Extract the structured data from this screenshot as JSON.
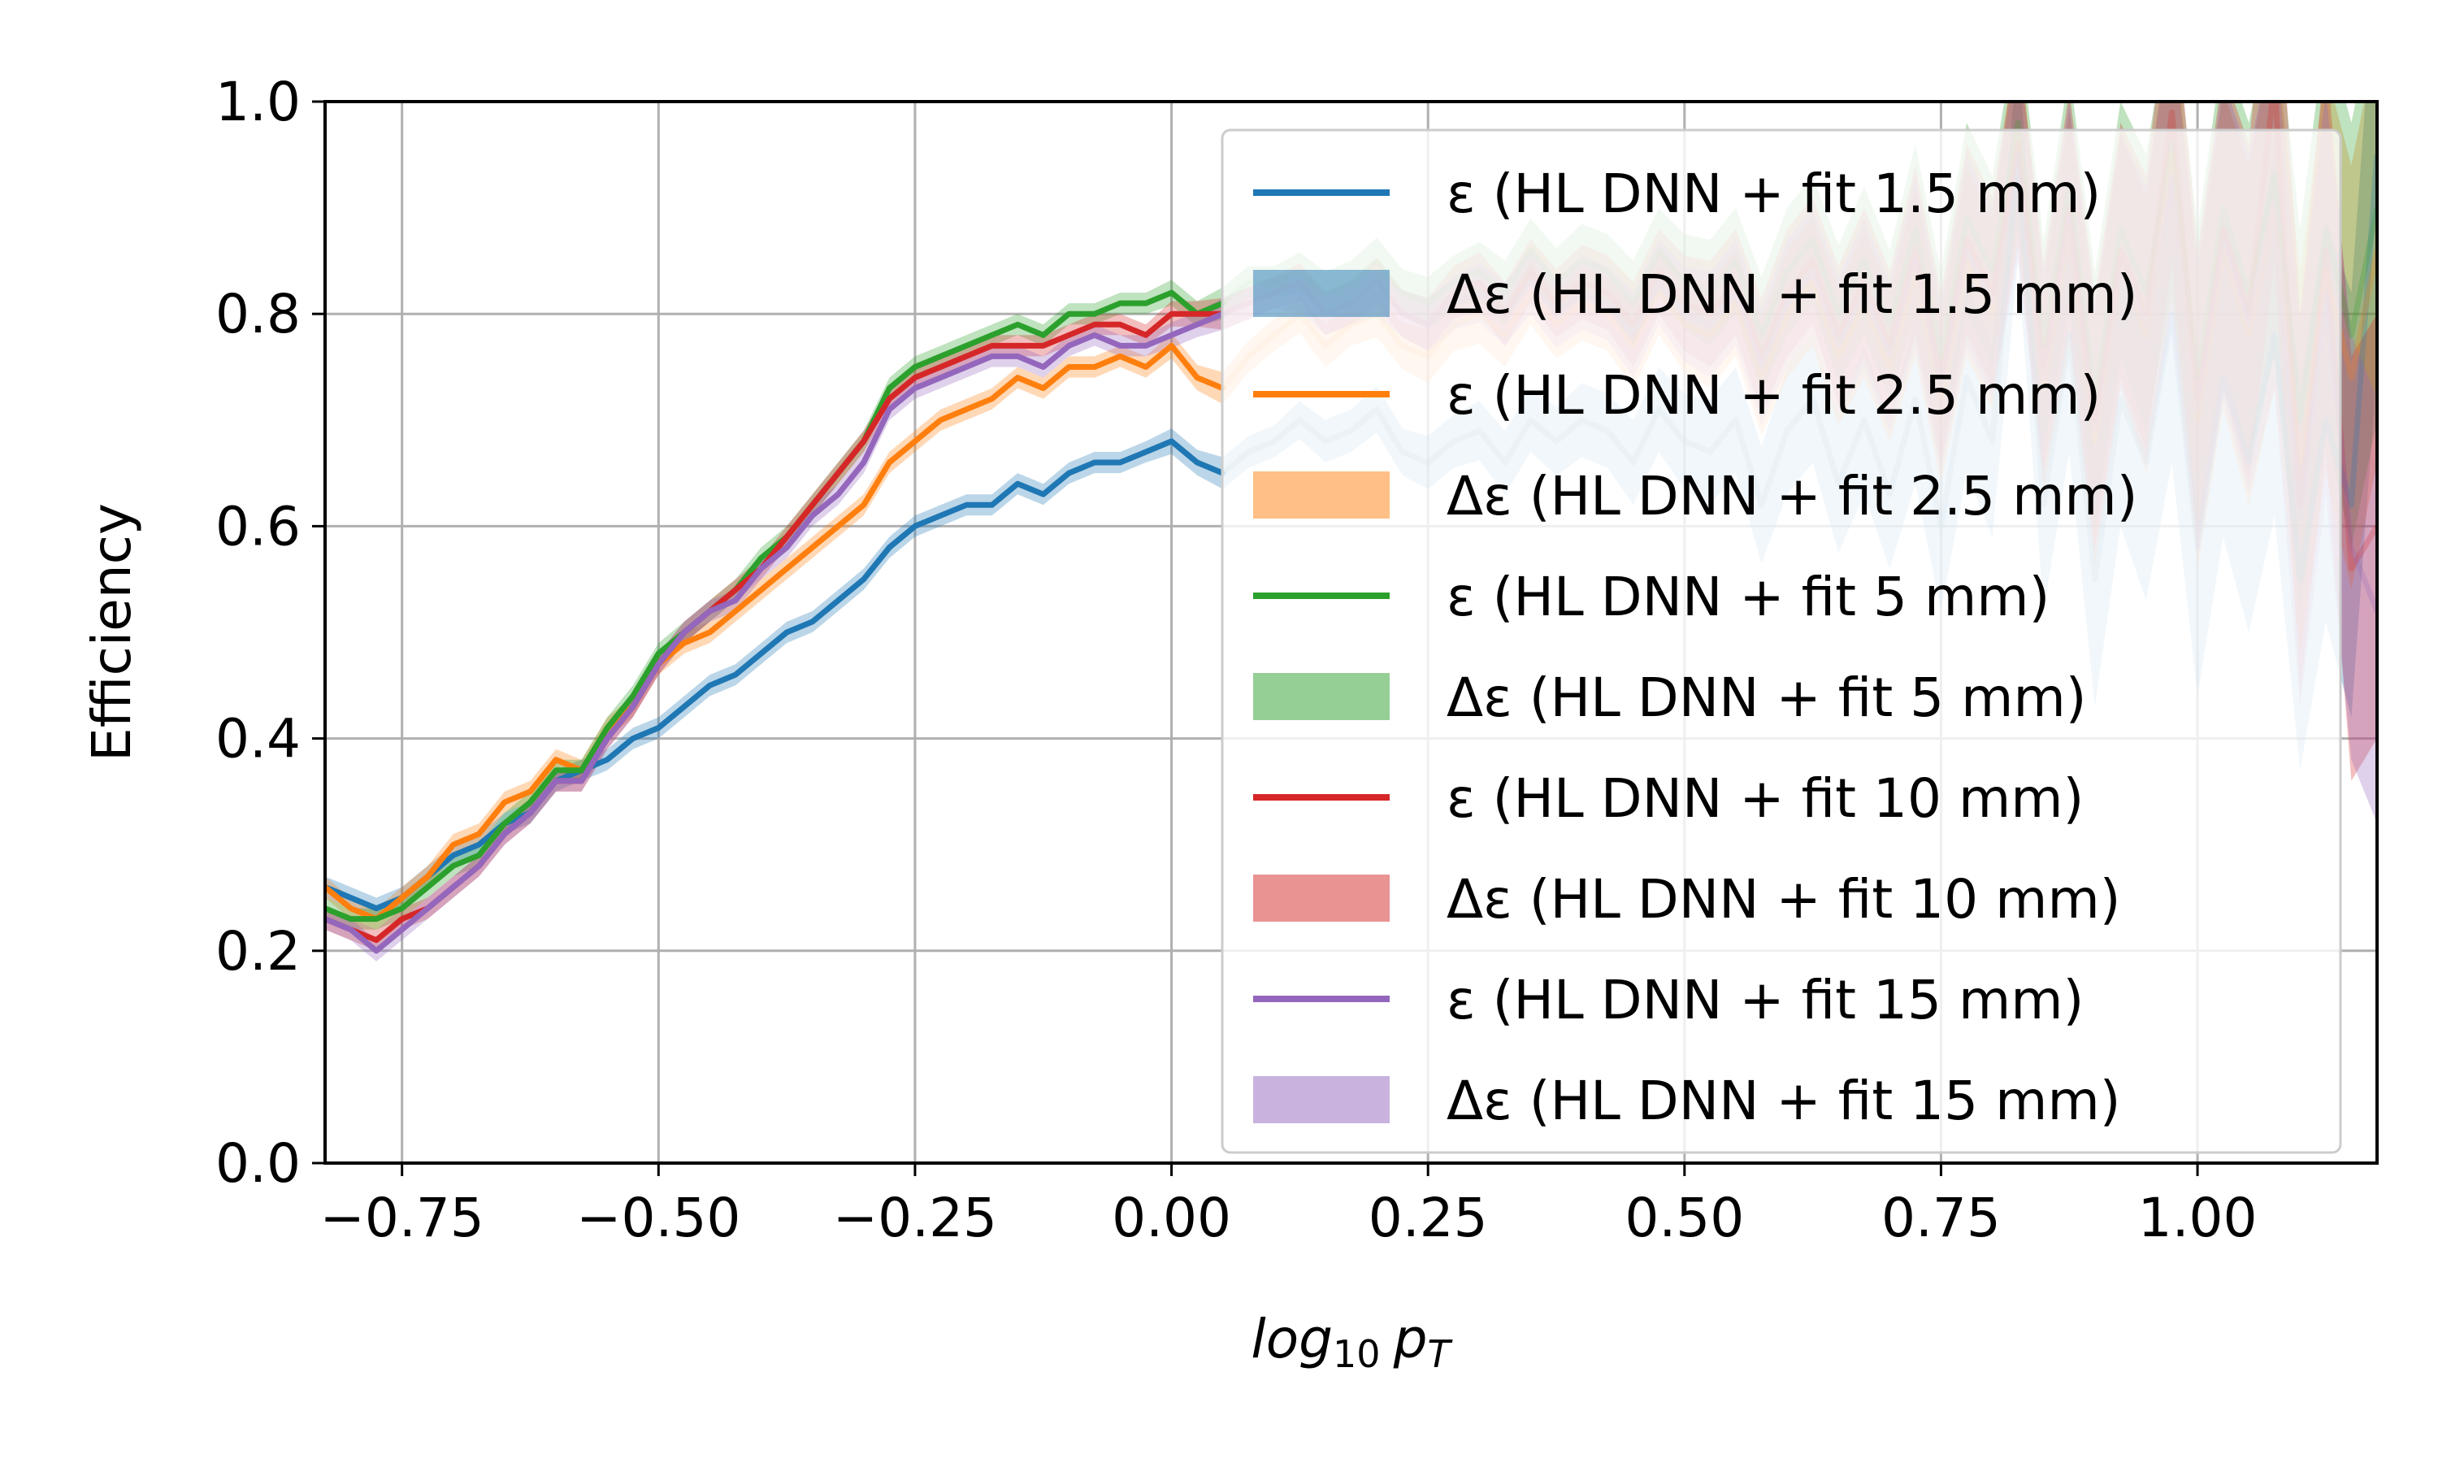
{
  "chart_data": {
    "type": "line",
    "xlabel_base": "log",
    "xlabel_sub": "10",
    "xlabel_p": "p",
    "xlabel_psub": "T",
    "ylabel": "Efficiency",
    "xlim": [
      -0.825,
      1.175
    ],
    "ylim": [
      0.0,
      1.0
    ],
    "xticks": [
      -0.75,
      -0.5,
      -0.25,
      0.0,
      0.25,
      0.5,
      0.75,
      1.0
    ],
    "xtick_labels": [
      "−0.75",
      "−0.50",
      "−0.25",
      "0.00",
      "0.25",
      "0.50",
      "0.75",
      "1.00"
    ],
    "yticks": [
      0.0,
      0.2,
      0.4,
      0.6,
      0.8,
      1.0
    ],
    "ytick_labels": [
      "0.0",
      "0.2",
      "0.4",
      "0.6",
      "0.8",
      "1.0"
    ],
    "grid": true,
    "legend_position": "top-right",
    "legend": [
      {
        "label": "ε (HL DNN + fit 1.5 mm)",
        "kind": "line",
        "color": "#1f77b4"
      },
      {
        "label": "Δε (HL DNN + fit 1.5 mm)",
        "kind": "band",
        "color": "#1f77b4"
      },
      {
        "label": "ε (HL DNN + fit 2.5 mm)",
        "kind": "line",
        "color": "#ff7f0e"
      },
      {
        "label": "Δε (HL DNN + fit 2.5 mm)",
        "kind": "band",
        "color": "#ff7f0e"
      },
      {
        "label": "ε (HL DNN + fit 5 mm)",
        "kind": "line",
        "color": "#2ca02c"
      },
      {
        "label": "Δε (HL DNN + fit 5 mm)",
        "kind": "band",
        "color": "#2ca02c"
      },
      {
        "label": "ε (HL DNN + fit 10 mm)",
        "kind": "line",
        "color": "#d62728"
      },
      {
        "label": "Δε (HL DNN + fit 10 mm)",
        "kind": "band",
        "color": "#d62728"
      },
      {
        "label": "ε (HL DNN + fit 15 mm)",
        "kind": "line",
        "color": "#9467bd"
      },
      {
        "label": "Δε (HL DNN + fit 15 mm)",
        "kind": "band",
        "color": "#9467bd"
      }
    ],
    "x": [
      -0.825,
      -0.8,
      -0.775,
      -0.75,
      -0.725,
      -0.7,
      -0.675,
      -0.65,
      -0.625,
      -0.6,
      -0.575,
      -0.55,
      -0.525,
      -0.5,
      -0.475,
      -0.45,
      -0.425,
      -0.4,
      -0.375,
      -0.35,
      -0.325,
      -0.3,
      -0.275,
      -0.25,
      -0.225,
      -0.2,
      -0.175,
      -0.15,
      -0.125,
      -0.1,
      -0.075,
      -0.05,
      -0.025,
      0.0,
      0.025,
      0.05,
      0.075,
      0.1,
      0.125,
      0.15,
      0.175,
      0.2,
      0.225,
      0.25,
      0.275,
      0.3,
      0.325,
      0.35,
      0.375,
      0.4,
      0.425,
      0.45,
      0.475,
      0.5,
      0.525,
      0.55,
      0.575,
      0.6,
      0.625,
      0.65,
      0.675,
      0.7,
      0.725,
      0.75,
      0.775,
      0.8,
      0.825,
      0.85,
      0.875,
      0.9,
      0.925,
      0.95,
      0.975,
      1.0,
      1.025,
      1.05,
      1.075,
      1.1,
      1.125,
      1.15,
      1.175
    ],
    "series": [
      {
        "name": "ε (HL DNN + fit 1.5 mm)",
        "color": "#1f77b4",
        "y": [
          0.26,
          0.25,
          0.24,
          0.25,
          0.27,
          0.29,
          0.3,
          0.32,
          0.33,
          0.36,
          0.37,
          0.38,
          0.4,
          0.41,
          0.43,
          0.45,
          0.46,
          0.48,
          0.5,
          0.51,
          0.53,
          0.55,
          0.58,
          0.6,
          0.61,
          0.62,
          0.62,
          0.64,
          0.63,
          0.65,
          0.66,
          0.66,
          0.67,
          0.68,
          0.66,
          0.65,
          0.67,
          0.68,
          0.7,
          0.68,
          0.69,
          0.71,
          0.67,
          0.66,
          0.68,
          0.69,
          0.66,
          0.7,
          0.68,
          0.7,
          0.69,
          0.66,
          0.71,
          0.68,
          0.67,
          0.7,
          0.62,
          0.69,
          0.72,
          0.64,
          0.7,
          0.63,
          0.72,
          0.6,
          0.74,
          0.68,
          0.95,
          0.62,
          0.78,
          0.55,
          0.72,
          0.66,
          0.8,
          0.58,
          0.74,
          0.66,
          0.78,
          0.55,
          0.7,
          0.62,
          0.95
        ],
        "err": [
          0.01,
          0.01,
          0.01,
          0.01,
          0.01,
          0.01,
          0.01,
          0.01,
          0.01,
          0.01,
          0.01,
          0.01,
          0.01,
          0.01,
          0.01,
          0.01,
          0.01,
          0.01,
          0.01,
          0.01,
          0.01,
          0.01,
          0.01,
          0.01,
          0.01,
          0.01,
          0.01,
          0.01,
          0.01,
          0.01,
          0.01,
          0.01,
          0.01,
          0.012,
          0.012,
          0.015,
          0.015,
          0.015,
          0.018,
          0.02,
          0.02,
          0.022,
          0.022,
          0.025,
          0.025,
          0.028,
          0.03,
          0.03,
          0.032,
          0.035,
          0.035,
          0.04,
          0.04,
          0.045,
          0.05,
          0.05,
          0.055,
          0.06,
          0.06,
          0.065,
          0.07,
          0.07,
          0.08,
          0.08,
          0.09,
          0.09,
          0.1,
          0.1,
          0.11,
          0.12,
          0.12,
          0.13,
          0.14,
          0.14,
          0.15,
          0.16,
          0.17,
          0.18,
          0.19,
          0.2,
          0.2
        ]
      },
      {
        "name": "ε (HL DNN + fit 2.5 mm)",
        "color": "#ff7f0e",
        "y": [
          0.26,
          0.24,
          0.23,
          0.25,
          0.27,
          0.3,
          0.31,
          0.34,
          0.35,
          0.38,
          0.37,
          0.41,
          0.43,
          0.47,
          0.49,
          0.5,
          0.52,
          0.54,
          0.56,
          0.58,
          0.6,
          0.62,
          0.66,
          0.68,
          0.7,
          0.71,
          0.72,
          0.74,
          0.73,
          0.75,
          0.75,
          0.76,
          0.75,
          0.77,
          0.74,
          0.73,
          0.76,
          0.78,
          0.8,
          0.77,
          0.79,
          0.8,
          0.77,
          0.76,
          0.79,
          0.8,
          0.78,
          0.82,
          0.79,
          0.81,
          0.8,
          0.77,
          0.82,
          0.79,
          0.78,
          0.81,
          0.74,
          0.8,
          0.83,
          0.76,
          0.81,
          0.75,
          0.84,
          0.72,
          0.85,
          0.8,
          0.97,
          0.73,
          0.88,
          0.68,
          0.85,
          0.78,
          0.95,
          0.7,
          0.86,
          0.78,
          0.9,
          0.66,
          0.84,
          0.74,
          0.86
        ],
        "err": [
          0.01,
          0.01,
          0.01,
          0.01,
          0.01,
          0.01,
          0.01,
          0.01,
          0.01,
          0.01,
          0.01,
          0.01,
          0.01,
          0.01,
          0.01,
          0.01,
          0.01,
          0.01,
          0.01,
          0.01,
          0.01,
          0.01,
          0.01,
          0.01,
          0.01,
          0.01,
          0.01,
          0.01,
          0.01,
          0.01,
          0.01,
          0.01,
          0.01,
          0.012,
          0.012,
          0.015,
          0.015,
          0.015,
          0.018,
          0.02,
          0.02,
          0.022,
          0.022,
          0.025,
          0.025,
          0.028,
          0.03,
          0.03,
          0.032,
          0.035,
          0.035,
          0.04,
          0.04,
          0.045,
          0.05,
          0.05,
          0.055,
          0.06,
          0.06,
          0.065,
          0.07,
          0.07,
          0.08,
          0.08,
          0.09,
          0.09,
          0.1,
          0.1,
          0.11,
          0.12,
          0.12,
          0.13,
          0.14,
          0.14,
          0.15,
          0.16,
          0.17,
          0.18,
          0.19,
          0.2,
          0.2
        ]
      },
      {
        "name": "ε (HL DNN + fit 5 mm)",
        "color": "#2ca02c",
        "y": [
          0.24,
          0.23,
          0.23,
          0.24,
          0.26,
          0.28,
          0.29,
          0.32,
          0.34,
          0.37,
          0.37,
          0.41,
          0.44,
          0.48,
          0.5,
          0.52,
          0.54,
          0.57,
          0.59,
          0.62,
          0.65,
          0.68,
          0.73,
          0.75,
          0.76,
          0.77,
          0.78,
          0.79,
          0.78,
          0.8,
          0.8,
          0.81,
          0.81,
          0.82,
          0.8,
          0.81,
          0.83,
          0.83,
          0.84,
          0.82,
          0.83,
          0.85,
          0.82,
          0.81,
          0.83,
          0.84,
          0.82,
          0.86,
          0.83,
          0.85,
          0.84,
          0.81,
          0.86,
          0.83,
          0.82,
          0.85,
          0.78,
          0.84,
          0.87,
          0.8,
          0.85,
          0.79,
          0.88,
          0.76,
          0.89,
          0.84,
          0.98,
          0.77,
          0.92,
          0.72,
          0.88,
          0.82,
          0.96,
          0.74,
          0.9,
          0.82,
          0.93,
          0.7,
          0.88,
          0.78,
          0.9
        ],
        "err": [
          0.01,
          0.01,
          0.01,
          0.01,
          0.01,
          0.01,
          0.01,
          0.01,
          0.01,
          0.01,
          0.01,
          0.01,
          0.01,
          0.01,
          0.01,
          0.01,
          0.01,
          0.01,
          0.01,
          0.01,
          0.01,
          0.01,
          0.01,
          0.01,
          0.01,
          0.01,
          0.01,
          0.01,
          0.01,
          0.01,
          0.01,
          0.01,
          0.01,
          0.012,
          0.012,
          0.015,
          0.015,
          0.015,
          0.018,
          0.02,
          0.02,
          0.022,
          0.022,
          0.025,
          0.025,
          0.028,
          0.03,
          0.03,
          0.032,
          0.035,
          0.035,
          0.04,
          0.04,
          0.045,
          0.05,
          0.05,
          0.055,
          0.06,
          0.06,
          0.065,
          0.07,
          0.07,
          0.08,
          0.08,
          0.09,
          0.09,
          0.1,
          0.1,
          0.11,
          0.12,
          0.12,
          0.13,
          0.14,
          0.14,
          0.15,
          0.16,
          0.17,
          0.18,
          0.19,
          0.2,
          0.2
        ]
      },
      {
        "name": "ε (HL DNN + fit 10 mm)",
        "color": "#d62728",
        "y": [
          0.23,
          0.22,
          0.21,
          0.23,
          0.24,
          0.26,
          0.28,
          0.31,
          0.33,
          0.36,
          0.36,
          0.4,
          0.43,
          0.47,
          0.5,
          0.52,
          0.54,
          0.56,
          0.59,
          0.62,
          0.65,
          0.68,
          0.72,
          0.74,
          0.75,
          0.76,
          0.77,
          0.77,
          0.77,
          0.78,
          0.79,
          0.79,
          0.78,
          0.8,
          0.8,
          0.8,
          0.81,
          0.82,
          0.83,
          0.8,
          0.81,
          0.83,
          0.8,
          0.79,
          0.82,
          0.83,
          0.8,
          0.84,
          0.81,
          0.83,
          0.82,
          0.79,
          0.84,
          0.81,
          0.8,
          0.83,
          0.76,
          0.82,
          0.85,
          0.78,
          0.83,
          0.77,
          0.86,
          0.74,
          0.87,
          0.82,
          0.96,
          0.75,
          0.9,
          0.7,
          0.86,
          0.8,
          0.99,
          0.72,
          0.88,
          0.8,
          1.02,
          0.62,
          0.86,
          0.56,
          0.6
        ],
        "err": [
          0.01,
          0.01,
          0.01,
          0.01,
          0.01,
          0.01,
          0.01,
          0.01,
          0.01,
          0.01,
          0.01,
          0.01,
          0.01,
          0.01,
          0.01,
          0.01,
          0.01,
          0.01,
          0.01,
          0.01,
          0.01,
          0.01,
          0.01,
          0.01,
          0.01,
          0.01,
          0.01,
          0.01,
          0.01,
          0.01,
          0.01,
          0.01,
          0.01,
          0.012,
          0.012,
          0.015,
          0.015,
          0.015,
          0.018,
          0.02,
          0.02,
          0.022,
          0.022,
          0.025,
          0.025,
          0.028,
          0.03,
          0.03,
          0.032,
          0.035,
          0.035,
          0.04,
          0.04,
          0.045,
          0.05,
          0.05,
          0.055,
          0.06,
          0.06,
          0.065,
          0.07,
          0.07,
          0.08,
          0.08,
          0.09,
          0.09,
          0.1,
          0.1,
          0.11,
          0.12,
          0.12,
          0.13,
          0.14,
          0.14,
          0.15,
          0.16,
          0.17,
          0.18,
          0.19,
          0.2,
          0.2
        ]
      },
      {
        "name": "ε (HL DNN + fit 15 mm)",
        "color": "#9467bd",
        "y": [
          0.23,
          0.22,
          0.2,
          0.22,
          0.24,
          0.26,
          0.28,
          0.31,
          0.33,
          0.36,
          0.36,
          0.4,
          0.43,
          0.47,
          0.5,
          0.52,
          0.53,
          0.56,
          0.58,
          0.61,
          0.63,
          0.66,
          0.71,
          0.73,
          0.74,
          0.75,
          0.76,
          0.76,
          0.75,
          0.77,
          0.78,
          0.77,
          0.77,
          0.78,
          0.79,
          0.8,
          0.81,
          0.82,
          0.82,
          0.8,
          0.81,
          0.82,
          0.8,
          0.79,
          0.81,
          0.82,
          0.8,
          0.83,
          0.8,
          0.82,
          0.81,
          0.78,
          0.83,
          0.8,
          0.79,
          0.82,
          0.75,
          0.81,
          0.84,
          0.77,
          0.82,
          0.76,
          0.85,
          0.73,
          0.86,
          0.81,
          0.95,
          0.74,
          0.89,
          0.69,
          0.85,
          0.79,
          0.93,
          0.71,
          0.87,
          0.79,
          0.9,
          0.61,
          0.82,
          0.58,
          0.52
        ],
        "err": [
          0.01,
          0.01,
          0.01,
          0.01,
          0.01,
          0.01,
          0.01,
          0.01,
          0.01,
          0.01,
          0.01,
          0.01,
          0.01,
          0.01,
          0.01,
          0.01,
          0.01,
          0.01,
          0.01,
          0.01,
          0.01,
          0.01,
          0.01,
          0.01,
          0.01,
          0.01,
          0.01,
          0.01,
          0.01,
          0.01,
          0.01,
          0.01,
          0.01,
          0.012,
          0.012,
          0.015,
          0.015,
          0.015,
          0.018,
          0.02,
          0.02,
          0.022,
          0.022,
          0.025,
          0.025,
          0.028,
          0.03,
          0.03,
          0.032,
          0.035,
          0.035,
          0.04,
          0.04,
          0.045,
          0.05,
          0.05,
          0.055,
          0.06,
          0.06,
          0.065,
          0.07,
          0.07,
          0.08,
          0.08,
          0.09,
          0.09,
          0.1,
          0.1,
          0.11,
          0.12,
          0.12,
          0.13,
          0.14,
          0.14,
          0.15,
          0.16,
          0.17,
          0.18,
          0.19,
          0.2,
          0.2
        ]
      }
    ]
  }
}
